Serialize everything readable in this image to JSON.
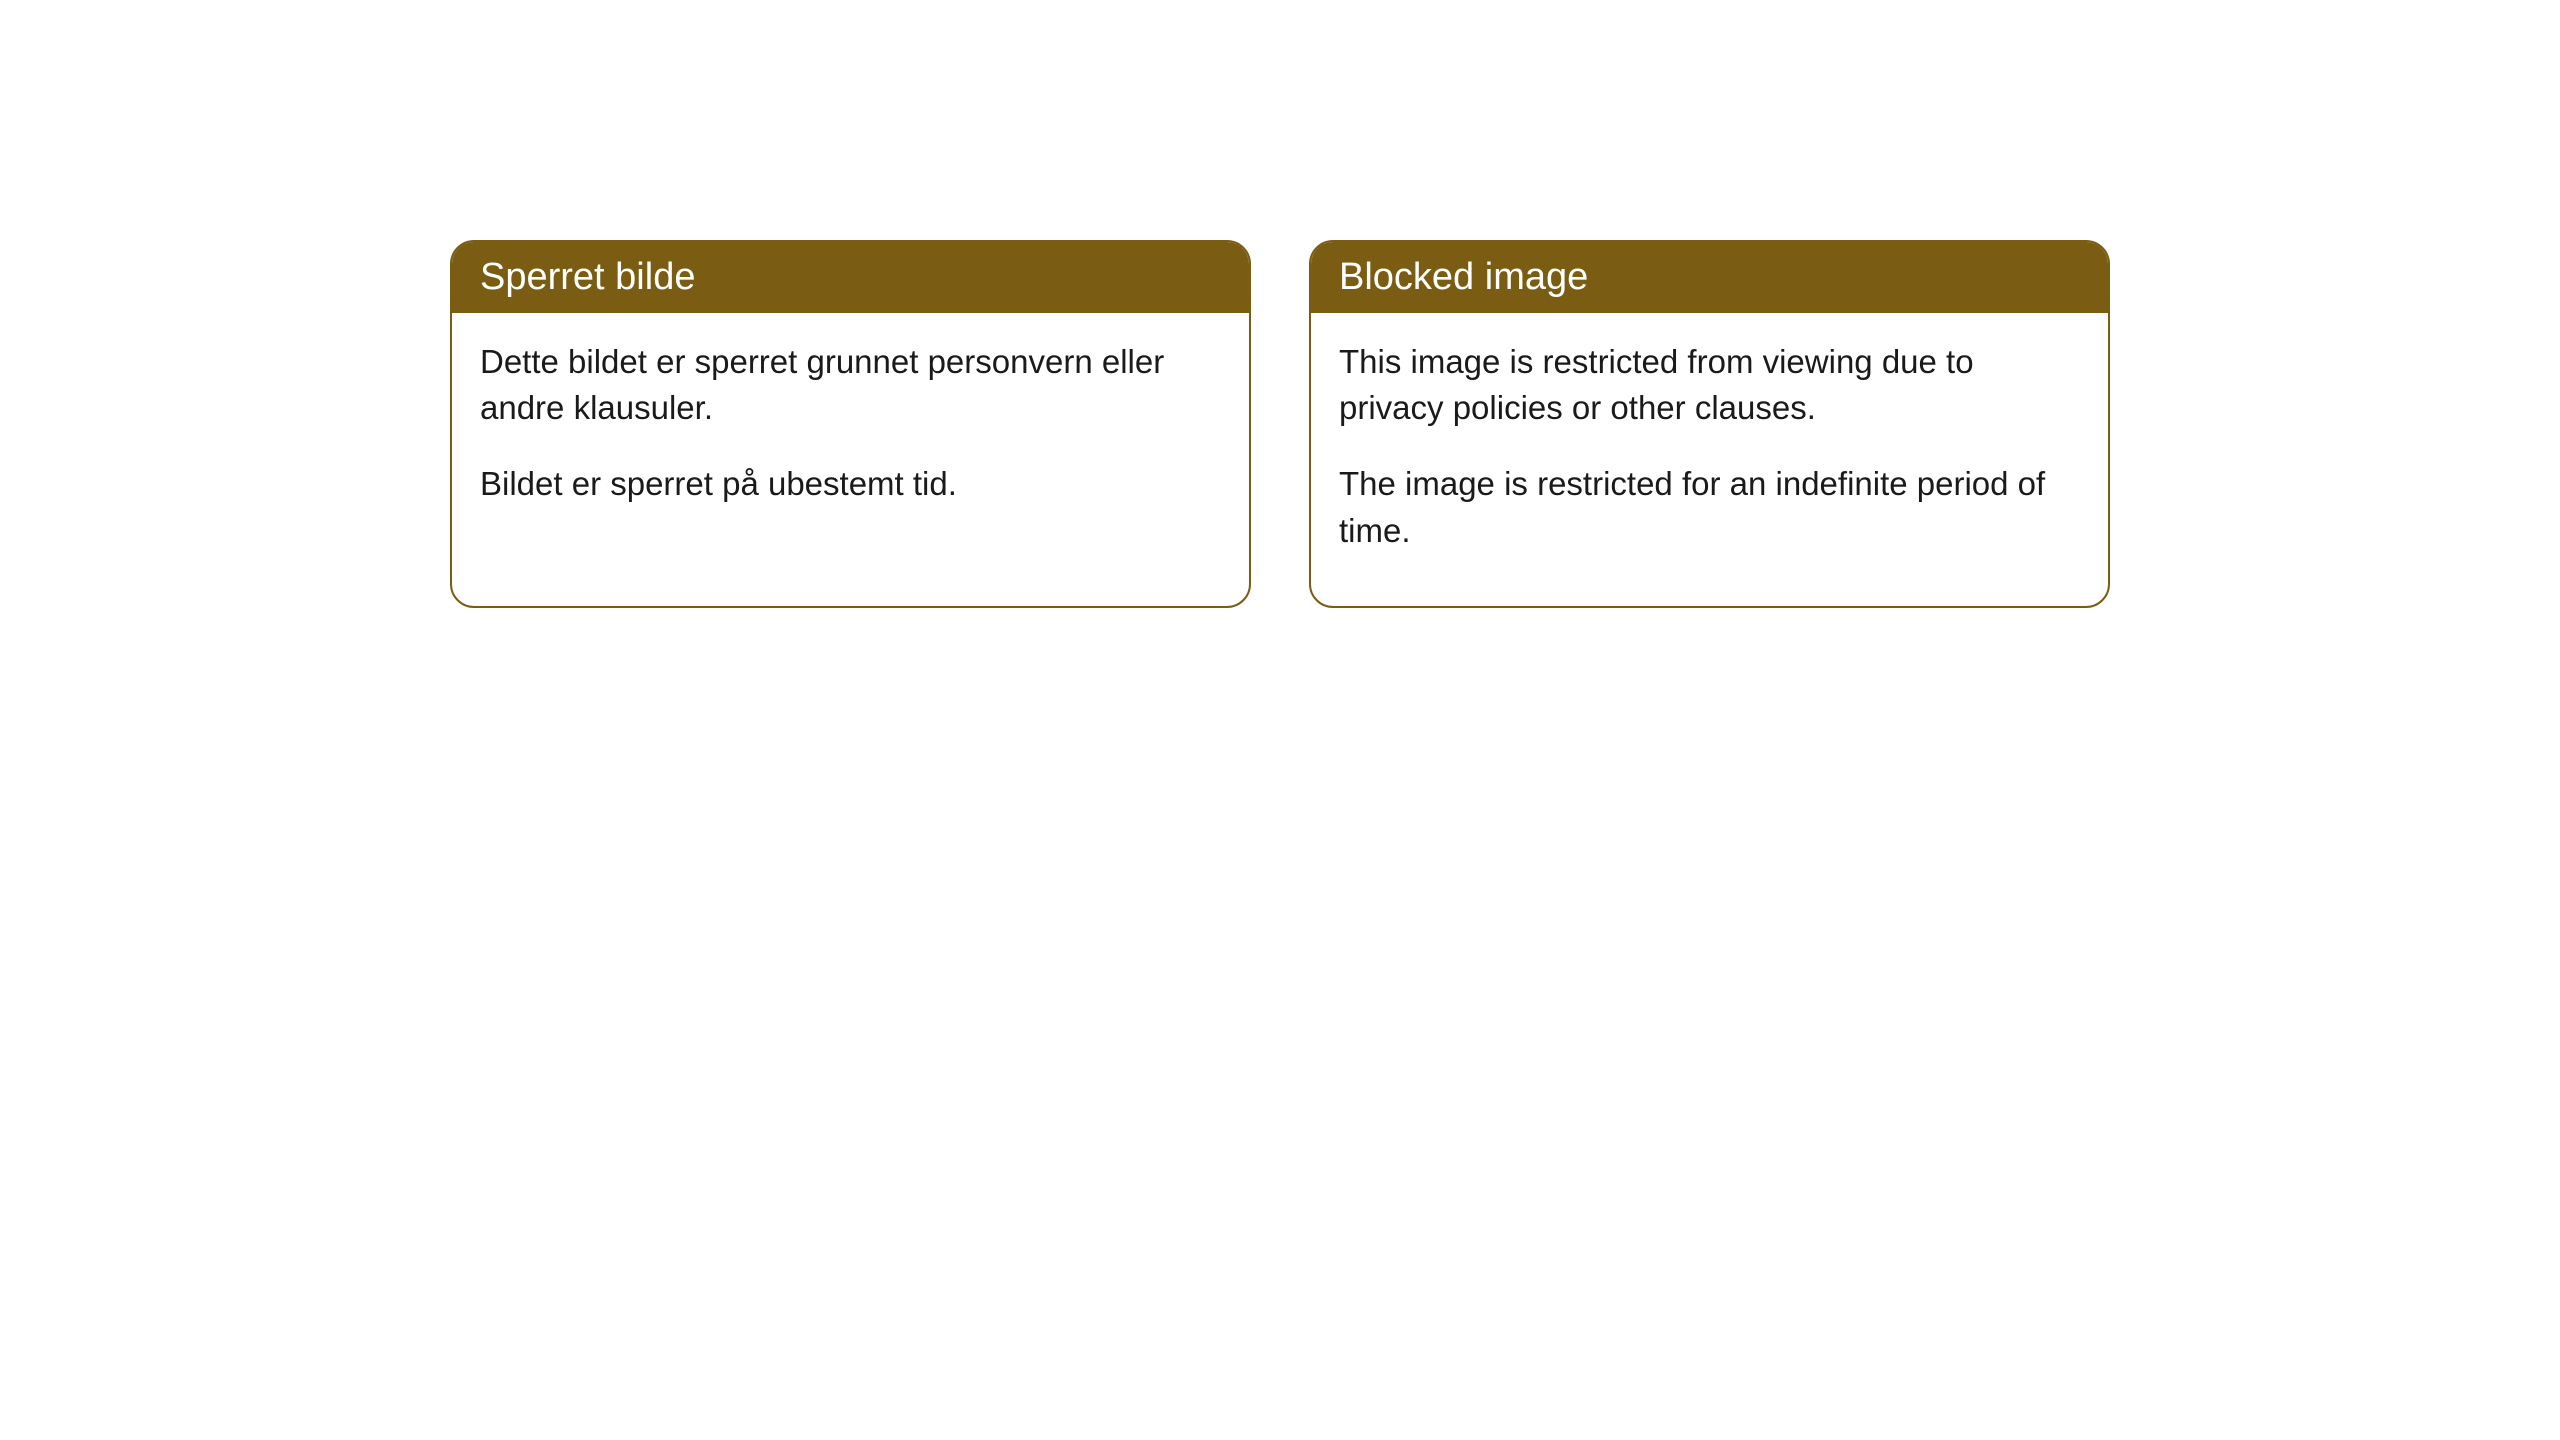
{
  "cards": [
    {
      "title": "Sperret bilde",
      "paragraph1": "Dette bildet er sperret grunnet personvern eller andre klausuler.",
      "paragraph2": "Bildet er sperret på ubestemt tid."
    },
    {
      "title": "Blocked image",
      "paragraph1": "This image is restricted from viewing due to privacy policies or other clauses.",
      "paragraph2": "The image is restricted for an indefinite period of time."
    }
  ],
  "styling": {
    "header_background_color": "#7a5d13",
    "header_text_color": "#ffffff",
    "border_color": "#7a5d13",
    "body_text_color": "#1a1a1a",
    "card_background_color": "#ffffff",
    "page_background_color": "#ffffff",
    "border_radius": 24,
    "header_fontsize": 38,
    "body_fontsize": 33
  }
}
